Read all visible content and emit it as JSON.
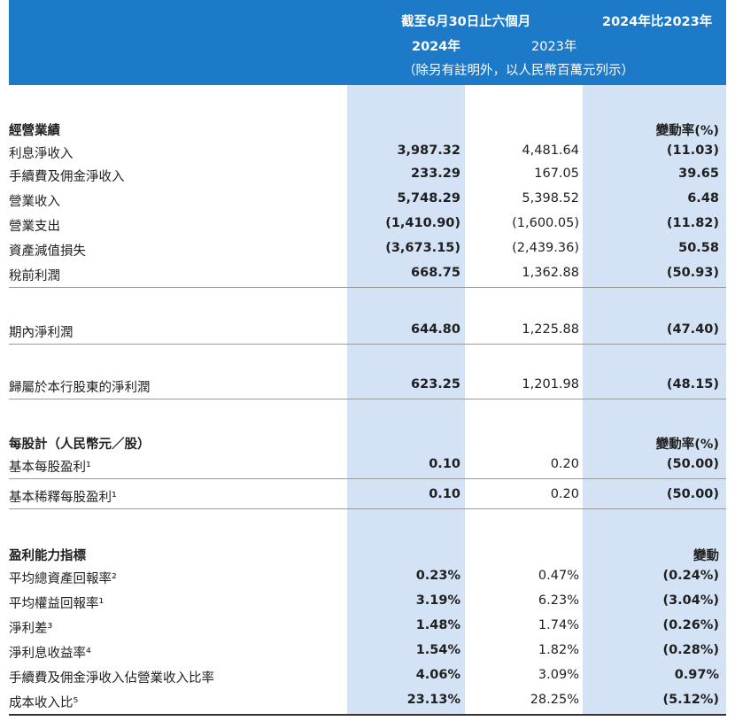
{
  "header": {
    "period_label": "截至6月30日止六個月",
    "compare_label": "2024年比2023年",
    "year_2024": "2024年",
    "year_2023": "2023年",
    "unit_note": "（除另有註明外，以人民幣百萬元列示）"
  },
  "sections": {
    "operating": {
      "title": "經營業績",
      "change_header": "變動率(%)",
      "rows": [
        {
          "label": "利息淨收入",
          "v2024": "3,987.32",
          "v2023": "4,481.64",
          "change": "(11.03)"
        },
        {
          "label": "手續費及佣金淨收入",
          "v2024": "233.29",
          "v2023": "167.05",
          "change": "39.65"
        },
        {
          "label": "營業收入",
          "v2024": "5,748.29",
          "v2023": "5,398.52",
          "change": "6.48"
        },
        {
          "label": "營業支出",
          "v2024": "(1,410.90)",
          "v2023": "(1,600.05)",
          "change": "(11.82)"
        },
        {
          "label": "資產減值損失",
          "v2024": "(3,673.15)",
          "v2023": "(2,439.36)",
          "change": "50.58"
        },
        {
          "label": "稅前利潤",
          "v2024": "668.75",
          "v2023": "1,362.88",
          "change": "(50.93)"
        }
      ]
    },
    "net_profit": {
      "label": "期內淨利潤",
      "v2024": "644.80",
      "v2023": "1,225.88",
      "change": "(47.40)"
    },
    "attributable_profit": {
      "label": "歸屬於本行股東的淨利潤",
      "v2024": "623.25",
      "v2023": "1,201.98",
      "change": "(48.15)"
    },
    "per_share": {
      "title": "每股計（人民幣元／股）",
      "change_header": "變動率(%)",
      "rows": [
        {
          "label": "基本每股盈利¹",
          "v2024": "0.10",
          "v2023": "0.20",
          "change": "(50.00)"
        },
        {
          "label": "基本稀釋每股盈利¹",
          "v2024": "0.10",
          "v2023": "0.20",
          "change": "(50.00)"
        }
      ]
    },
    "profitability": {
      "title": "盈利能力指標",
      "change_header": "變動",
      "rows": [
        {
          "label": "平均總資產回報率²",
          "v2024": "0.23%",
          "v2023": "0.47%",
          "change": "(0.24%)"
        },
        {
          "label": "平均權益回報率¹",
          "v2024": "3.19%",
          "v2023": "6.23%",
          "change": "(3.04%)"
        },
        {
          "label": "淨利差³",
          "v2024": "1.48%",
          "v2023": "1.74%",
          "change": "(0.26%)"
        },
        {
          "label": "淨利息收益率⁴",
          "v2024": "1.54%",
          "v2023": "1.82%",
          "change": "(0.28%)"
        },
        {
          "label": "手續費及佣金淨收入佔營業收入比率",
          "v2024": "4.06%",
          "v2023": "3.09%",
          "change": "0.97%"
        },
        {
          "label": "成本收入比⁵",
          "v2024": "23.13%",
          "v2023": "28.25%",
          "change": "(5.12%)"
        }
      ]
    }
  }
}
